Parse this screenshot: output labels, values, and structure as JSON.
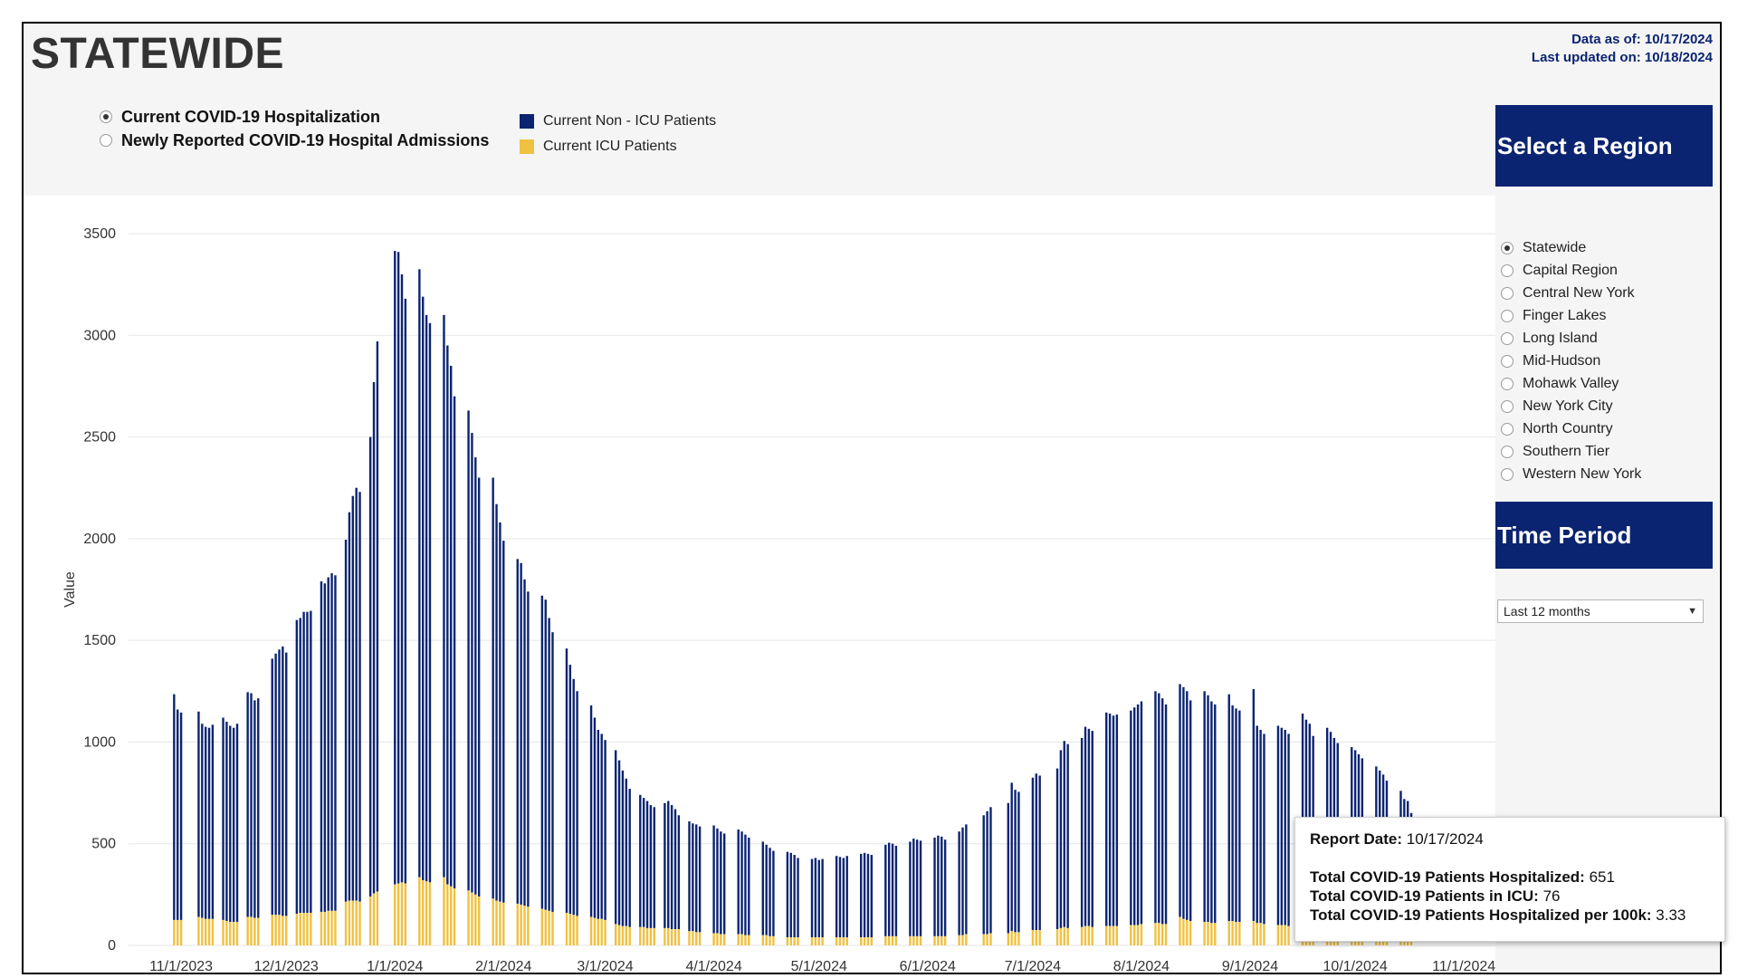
{
  "header": {
    "title": "STATEWIDE",
    "data_as_of": "Data as of: 10/17/2024",
    "last_updated": "Last updated on: 10/18/2024"
  },
  "measures": [
    {
      "label": "Current COVID-19 Hospitalization",
      "selected": true
    },
    {
      "label": "Newly Reported COVID-19 Hospital Admissions",
      "selected": false
    }
  ],
  "legend": [
    {
      "label": "Current Non - ICU Patients",
      "color": "#0b2471"
    },
    {
      "label": "Current ICU Patients",
      "color": "#f0c140"
    }
  ],
  "sidebar": {
    "region_title": "Select a Region",
    "regions": [
      {
        "label": "Statewide",
        "selected": true
      },
      {
        "label": "Capital Region",
        "selected": false
      },
      {
        "label": "Central New York",
        "selected": false
      },
      {
        "label": "Finger Lakes",
        "selected": false
      },
      {
        "label": "Long Island",
        "selected": false
      },
      {
        "label": "Mid-Hudson",
        "selected": false
      },
      {
        "label": "Mohawk Valley",
        "selected": false
      },
      {
        "label": "New York City",
        "selected": false
      },
      {
        "label": "North Country",
        "selected": false
      },
      {
        "label": "Southern Tier",
        "selected": false
      },
      {
        "label": "Western New York",
        "selected": false
      }
    ],
    "time_title": "Time Period",
    "time_value": "Last 12 months"
  },
  "tooltip": {
    "report_date_label": "Report Date:",
    "report_date_value": "10/17/2024",
    "hosp_label": "Total COVID-19 Patients Hospitalized:",
    "hosp_value": "651",
    "icu_label": "Total COVID-19 Patients in ICU:",
    "icu_value": "76",
    "per100k_label": "Total COVID-19 Patients Hospitalized per 100k:",
    "per100k_value": "3.33"
  },
  "chart_data": {
    "type": "bar",
    "stacked": true,
    "ylabel": "Value",
    "ylim": [
      0,
      3500
    ],
    "yticks": [
      0,
      500,
      1000,
      1500,
      2000,
      2500,
      3000,
      3500
    ],
    "xlim": [
      "2023-10-17",
      "2024-11-10"
    ],
    "xticks": [
      "11/1/2023",
      "12/1/2023",
      "1/1/2024",
      "2/1/2024",
      "3/1/2024",
      "4/1/2024",
      "5/1/2024",
      "6/1/2024",
      "7/1/2024",
      "8/1/2024",
      "9/1/2024",
      "10/1/2024",
      "11/1/2024"
    ],
    "grid": true,
    "colors": {
      "non_icu": "#0b2471",
      "icu": "#f0c140"
    },
    "series_labels": {
      "non_icu": "Current Non - ICU Patients",
      "icu": "Current ICU Patients"
    },
    "weeks": [
      {
        "week_start": "2023-10-29",
        "total": [
          1235,
          1160,
          1145
        ],
        "icu": [
          125,
          125,
          125
        ]
      },
      {
        "week_start": "2023-11-05",
        "total": [
          1150,
          1090,
          1075,
          1070,
          1085
        ],
        "icu": [
          140,
          135,
          130,
          130,
          130
        ]
      },
      {
        "week_start": "2023-11-12",
        "total": [
          1120,
          1100,
          1080,
          1070,
          1090
        ],
        "icu": [
          125,
          120,
          115,
          115,
          115
        ]
      },
      {
        "week_start": "2023-11-19",
        "total": [
          1245,
          1240,
          1205,
          1215
        ],
        "icu": [
          140,
          140,
          135,
          135
        ]
      },
      {
        "week_start": "2023-11-26",
        "total": [
          1410,
          1435,
          1455,
          1470,
          1440
        ],
        "icu": [
          150,
          150,
          150,
          145,
          145
        ]
      },
      {
        "week_start": "2023-12-03",
        "total": [
          1600,
          1610,
          1640,
          1640,
          1645
        ],
        "icu": [
          155,
          160,
          160,
          160,
          160
        ]
      },
      {
        "week_start": "2023-12-10",
        "total": [
          1790,
          1780,
          1810,
          1830,
          1820
        ],
        "icu": [
          165,
          165,
          170,
          170,
          170
        ]
      },
      {
        "week_start": "2023-12-17",
        "total": [
          1995,
          2130,
          2210,
          2250,
          2230
        ],
        "icu": [
          215,
          220,
          220,
          220,
          215
        ]
      },
      {
        "week_start": "2023-12-24",
        "total": [
          2500,
          2770,
          2970
        ],
        "icu": [
          240,
          255,
          265
        ]
      },
      {
        "week_start": "2023-12-31",
        "total": [
          3415,
          3410,
          3300,
          3180
        ],
        "icu": [
          300,
          305,
          310,
          305
        ]
      },
      {
        "week_start": "2024-01-07",
        "total": [
          3325,
          3190,
          3100,
          3060
        ],
        "icu": [
          335,
          320,
          315,
          310
        ]
      },
      {
        "week_start": "2024-01-14",
        "total": [
          3100,
          2950,
          2850,
          2700
        ],
        "icu": [
          335,
          300,
          290,
          280
        ]
      },
      {
        "week_start": "2024-01-21",
        "total": [
          2630,
          2520,
          2400,
          2300
        ],
        "icu": [
          270,
          260,
          250,
          240
        ]
      },
      {
        "week_start": "2024-01-28",
        "total": [
          2300,
          2170,
          2080,
          1990
        ],
        "icu": [
          230,
          220,
          215,
          210
        ]
      },
      {
        "week_start": "2024-02-04",
        "total": [
          1900,
          1880,
          1800,
          1740
        ],
        "icu": [
          205,
          200,
          195,
          190
        ]
      },
      {
        "week_start": "2024-02-11",
        "total": [
          1720,
          1700,
          1610,
          1540
        ],
        "icu": [
          180,
          175,
          170,
          165
        ]
      },
      {
        "week_start": "2024-02-18",
        "total": [
          1460,
          1380,
          1310,
          1250
        ],
        "icu": [
          160,
          155,
          150,
          145
        ]
      },
      {
        "week_start": "2024-02-25",
        "total": [
          1180,
          1120,
          1060,
          1040,
          1010
        ],
        "icu": [
          140,
          135,
          130,
          130,
          125
        ]
      },
      {
        "week_start": "2024-03-03",
        "total": [
          960,
          910,
          860,
          820,
          770
        ],
        "icu": [
          105,
          100,
          95,
          95,
          90
        ]
      },
      {
        "week_start": "2024-03-10",
        "total": [
          740,
          725,
          710,
          690,
          680
        ],
        "icu": [
          90,
          90,
          85,
          85,
          85
        ]
      },
      {
        "week_start": "2024-03-17",
        "total": [
          700,
          710,
          690,
          670,
          640
        ],
        "icu": [
          85,
          85,
          80,
          80,
          80
        ]
      },
      {
        "week_start": "2024-03-24",
        "total": [
          610,
          600,
          595,
          585
        ],
        "icu": [
          70,
          70,
          65,
          65
        ]
      },
      {
        "week_start": "2024-03-31",
        "total": [
          590,
          575,
          560,
          550
        ],
        "icu": [
          60,
          60,
          55,
          55
        ]
      },
      {
        "week_start": "2024-04-07",
        "total": [
          570,
          560,
          545,
          530
        ],
        "icu": [
          55,
          55,
          50,
          50
        ]
      },
      {
        "week_start": "2024-04-14",
        "total": [
          510,
          495,
          480,
          465
        ],
        "icu": [
          50,
          50,
          45,
          45
        ]
      },
      {
        "week_start": "2024-04-21",
        "total": [
          460,
          455,
          445,
          430
        ],
        "icu": [
          40,
          40,
          40,
          40
        ]
      },
      {
        "week_start": "2024-04-28",
        "total": [
          425,
          430,
          420,
          425
        ],
        "icu": [
          40,
          40,
          40,
          40
        ]
      },
      {
        "week_start": "2024-05-05",
        "total": [
          440,
          435,
          430,
          440
        ],
        "icu": [
          40,
          40,
          40,
          40
        ]
      },
      {
        "week_start": "2024-05-12",
        "total": [
          450,
          455,
          450,
          445
        ],
        "icu": [
          40,
          40,
          40,
          40
        ]
      },
      {
        "week_start": "2024-05-19",
        "total": [
          495,
          505,
          500,
          490
        ],
        "icu": [
          45,
          45,
          45,
          45
        ]
      },
      {
        "week_start": "2024-05-26",
        "total": [
          510,
          525,
          520,
          515
        ],
        "icu": [
          45,
          45,
          45,
          45
        ]
      },
      {
        "week_start": "2024-06-02",
        "total": [
          530,
          540,
          535,
          520
        ],
        "icu": [
          45,
          45,
          45,
          45
        ]
      },
      {
        "week_start": "2024-06-09",
        "total": [
          560,
          580,
          595
        ],
        "icu": [
          50,
          50,
          55
        ]
      },
      {
        "week_start": "2024-06-16",
        "total": [
          640,
          660,
          680
        ],
        "icu": [
          55,
          55,
          60
        ]
      },
      {
        "week_start": "2024-06-23",
        "total": [
          700,
          800,
          765,
          755
        ],
        "icu": [
          60,
          70,
          65,
          65
        ]
      },
      {
        "week_start": "2024-06-30",
        "total": [
          825,
          845,
          835
        ],
        "icu": [
          75,
          75,
          75
        ]
      },
      {
        "week_start": "2024-07-07",
        "total": [
          870,
          960,
          1005,
          990
        ],
        "icu": [
          80,
          85,
          90,
          85
        ]
      },
      {
        "week_start": "2024-07-14",
        "total": [
          1020,
          1075,
          1065,
          1055
        ],
        "icu": [
          90,
          95,
          95,
          90
        ]
      },
      {
        "week_start": "2024-07-21",
        "total": [
          1145,
          1140,
          1130,
          1135
        ],
        "icu": [
          95,
          95,
          95,
          95
        ]
      },
      {
        "week_start": "2024-07-28",
        "total": [
          1155,
          1170,
          1185,
          1200
        ],
        "icu": [
          100,
          100,
          100,
          105
        ]
      },
      {
        "week_start": "2024-08-04",
        "total": [
          1250,
          1240,
          1215,
          1185
        ],
        "icu": [
          110,
          110,
          105,
          105
        ]
      },
      {
        "week_start": "2024-08-11",
        "total": [
          1285,
          1270,
          1250,
          1205
        ],
        "icu": [
          140,
          130,
          125,
          120
        ]
      },
      {
        "week_start": "2024-08-18",
        "total": [
          1250,
          1230,
          1200,
          1185
        ],
        "icu": [
          115,
          115,
          110,
          110
        ]
      },
      {
        "week_start": "2024-08-25",
        "total": [
          1235,
          1180,
          1165,
          1155
        ],
        "icu": [
          120,
          120,
          115,
          115
        ]
      },
      {
        "week_start": "2024-09-01",
        "total": [
          1260,
          1080,
          1060,
          1040
        ],
        "icu": [
          120,
          110,
          110,
          105
        ]
      },
      {
        "week_start": "2024-09-08",
        "total": [
          1080,
          1070,
          1060,
          1040
        ],
        "icu": [
          100,
          100,
          100,
          95
        ]
      },
      {
        "week_start": "2024-09-15",
        "total": [
          1140,
          1110,
          1090,
          1030
        ],
        "icu": [
          100,
          95,
          95,
          90
        ]
      },
      {
        "week_start": "2024-09-22",
        "total": [
          1070,
          1050,
          1020,
          995
        ],
        "icu": [
          90,
          90,
          85,
          85
        ]
      },
      {
        "week_start": "2024-09-29",
        "total": [
          975,
          960,
          940,
          920
        ],
        "icu": [
          85,
          80,
          80,
          80
        ]
      },
      {
        "week_start": "2024-10-06",
        "total": [
          880,
          860,
          840,
          810
        ],
        "icu": [
          80,
          80,
          75,
          75
        ]
      },
      {
        "week_start": "2024-10-13",
        "total": [
          760,
          720,
          710,
          651
        ],
        "icu": [
          78,
          78,
          76,
          76
        ]
      }
    ]
  }
}
